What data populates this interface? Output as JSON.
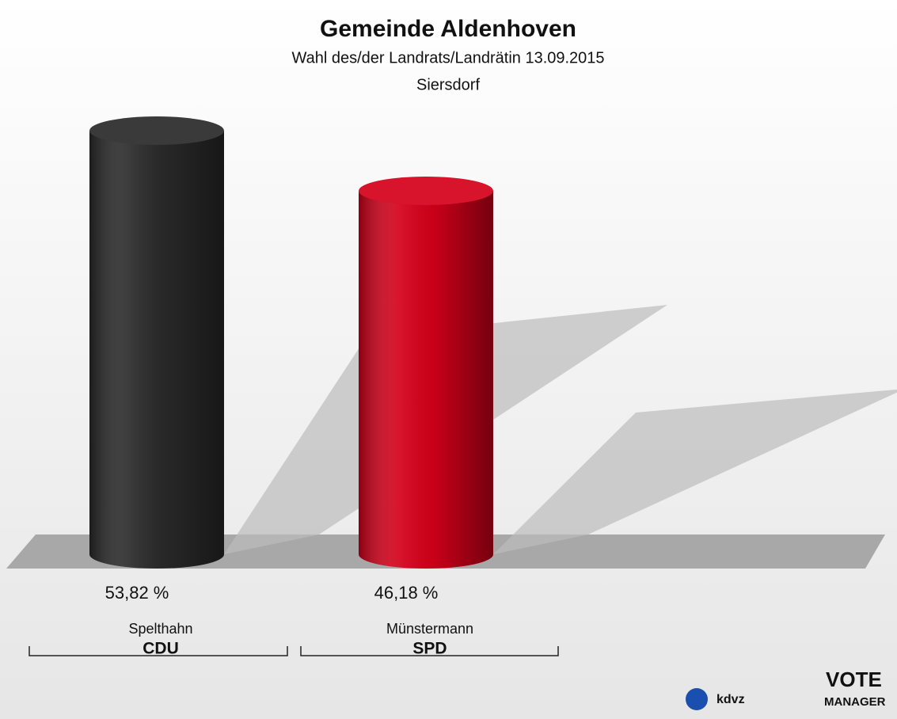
{
  "chart_data": {
    "type": "cylinder-bar",
    "title": "Gemeinde Aldenhoven",
    "subtitle": [
      "Wahl des/der Landrats/Landrätin 13.09.2015",
      "Siersdorf"
    ],
    "categories": [
      "Spelthahn",
      "Münstermann"
    ],
    "groups": [
      "CDU",
      "SPD"
    ],
    "values": [
      53.82,
      46.18
    ],
    "value_labels": [
      "53,82 %",
      "46,18 %"
    ],
    "colors": [
      "#2a2a2a",
      "#d4001a"
    ],
    "logo": [
      "kdvz",
      "VOTE",
      "MANAGER"
    ]
  }
}
